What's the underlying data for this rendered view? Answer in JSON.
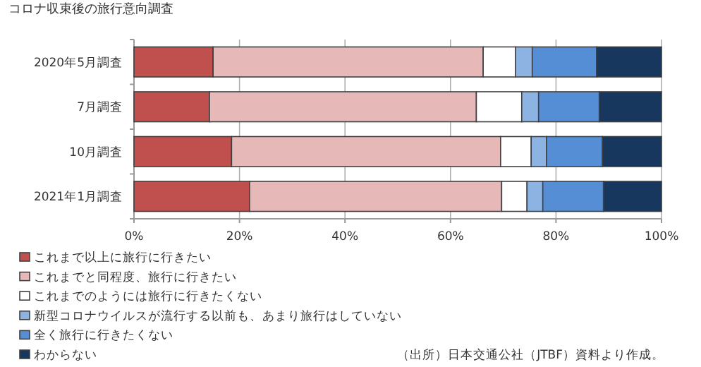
{
  "chart_data": {
    "type": "bar",
    "orientation": "horizontal",
    "stacked": true,
    "title": "コロナ収束後の旅行意向調査",
    "categories": [
      "2020年5月調査",
      "7月調査",
      "10月調査",
      "2021年1月調査"
    ],
    "series": [
      {
        "name": "これまで以上に旅行に行きたい",
        "color": "#c0504d",
        "values": [
          15,
          14.3,
          18.5,
          21.9
        ]
      },
      {
        "name": "これまでと同程度、旅行に行きたい",
        "color": "#e6b9b8",
        "values": [
          51.2,
          50.6,
          51,
          47.8
        ]
      },
      {
        "name": "これまでのようには旅行に行きたくない",
        "color": "#ffffff",
        "values": [
          6.1,
          8.6,
          5.8,
          4.8
        ]
      },
      {
        "name": "新型コロナウイルスが流行する以前も、あまり旅行はしていない",
        "color": "#8db3e2",
        "values": [
          3.2,
          3.2,
          2.9,
          3
        ]
      },
      {
        "name": "全く旅行に行きたくない",
        "color": "#558ed5",
        "values": [
          12.2,
          11.5,
          10.6,
          11.5
        ]
      },
      {
        "name": "わからない",
        "color": "#17375e",
        "values": [
          12.3,
          11.8,
          11.2,
          11
        ]
      }
    ],
    "xlim": [
      0,
      100
    ],
    "xticks": [
      {
        "value": 0,
        "label": "0%"
      },
      {
        "value": 20,
        "label": "20%"
      },
      {
        "value": 40,
        "label": "40%"
      },
      {
        "value": 60,
        "label": "60%"
      },
      {
        "value": 80,
        "label": "80%"
      },
      {
        "value": 100,
        "label": "100%"
      }
    ],
    "grid": "x",
    "legend": "bottom left",
    "annotations": [
      "（出所）日本交通公社（JTBF）資料より作成。"
    ]
  }
}
